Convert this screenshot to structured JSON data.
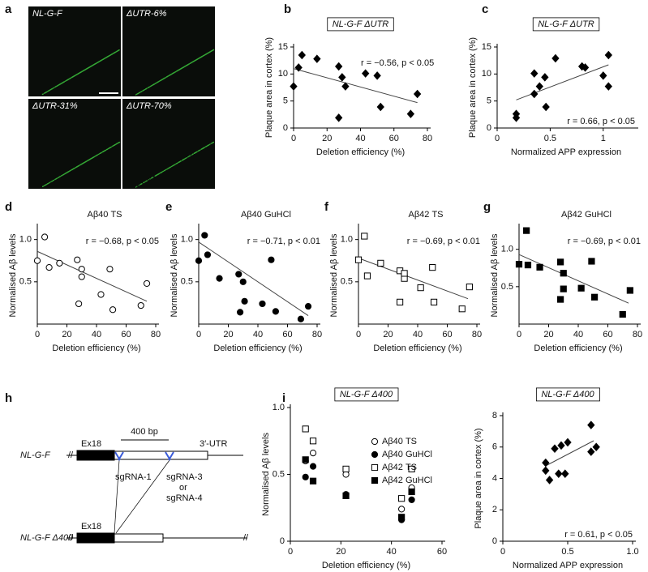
{
  "panel_labels": [
    "a",
    "b",
    "c",
    "d",
    "e",
    "f",
    "g",
    "h",
    "i"
  ],
  "panel_a": {
    "images": [
      "NL-G-F",
      "ΔUTR-6%",
      "ΔUTR-31%",
      "ΔUTR-70%"
    ]
  },
  "panel_h": {
    "rows": [
      "NL-G-F",
      "NL-G-F Δ400"
    ],
    "exon": "Ex18",
    "span": "400 bp",
    "utr": "3′-UTR",
    "guides": [
      "sgRNA-1",
      "sgRNA-3",
      "or",
      "sgRNA-4"
    ]
  },
  "chart_data": [
    {
      "type": "scatter",
      "title": "NL-G-F ΔUTR",
      "title_boxed": true,
      "x_label": "Deletion efficiency (%)",
      "y_label": "Plaque area in cortex (%)",
      "annotation": "r = −0.56, p < 0.05",
      "marker": "diamond",
      "filled": true,
      "color": "#000000",
      "xlim": [
        0,
        80
      ],
      "xticks": [
        0,
        20,
        40,
        60,
        80
      ],
      "ylim": [
        0,
        15
      ],
      "yticks": [
        0,
        5,
        10,
        15
      ],
      "x": [
        0,
        3,
        5,
        14,
        27,
        27,
        29,
        31,
        43,
        50,
        52,
        70,
        74
      ],
      "values": [
        7.7,
        11.2,
        13.5,
        12.8,
        11.4,
        1.9,
        9.4,
        7.7,
        10.1,
        9.7,
        3.9,
        2.6,
        6.3
      ],
      "fit": {
        "x": [
          0,
          74
        ],
        "values": [
          11,
          4.7
        ]
      }
    },
    {
      "type": "scatter",
      "title": "NL-G-F ΔUTR",
      "title_boxed": true,
      "x_label": "Normalized APP expression",
      "y_label": "Plaque area in cortex (%)",
      "annotation": "r = 0.66, p < 0.05",
      "marker": "diamond",
      "filled": true,
      "color": "#000000",
      "xlim": [
        0,
        1.3
      ],
      "xticks": [
        0,
        0.5,
        1
      ],
      "ylim": [
        0,
        15
      ],
      "yticks": [
        0,
        5,
        10,
        15
      ],
      "x": [
        0.18,
        0.18,
        0.35,
        0.35,
        0.4,
        0.45,
        0.46,
        0.55,
        0.8,
        0.83,
        1.0,
        1.05,
        1.05
      ],
      "values": [
        2.6,
        1.9,
        10.1,
        6.3,
        7.7,
        9.4,
        3.9,
        12.9,
        11.4,
        11.2,
        9.7,
        13.5,
        7.7
      ],
      "fit": {
        "x": [
          0.18,
          1.05
        ],
        "values": [
          5.2,
          11.7
        ]
      }
    },
    {
      "type": "scatter",
      "title": "Aβ40 TS",
      "x_label": "Deletion efficiency (%)",
      "y_label": "Normalised Aβ levels",
      "annotation": "r = −0.68, p < 0.05",
      "marker": "circle",
      "filled": false,
      "color": "#000000",
      "xlim": [
        0,
        80
      ],
      "xticks": [
        0,
        20,
        40,
        60,
        80
      ],
      "ylim": [
        0,
        1.15
      ],
      "yticks": [
        0.5,
        {
          "value": 1,
          "label": "1.0"
        }
      ],
      "x": [
        0,
        5,
        8,
        15,
        27,
        28,
        30,
        30,
        43,
        49,
        51,
        70,
        74
      ],
      "values": [
        0.75,
        1.03,
        0.67,
        0.72,
        0.76,
        0.24,
        0.65,
        0.56,
        0.35,
        0.65,
        0.17,
        0.22,
        0.48
      ],
      "fit": {
        "x": [
          0,
          74
        ],
        "values": [
          0.86,
          0.27
        ]
      }
    },
    {
      "type": "scatter",
      "title": "Aβ40 GuHCl",
      "x_label": "Deletion efficiency (%)",
      "y_label": "Normalised Aβ levels",
      "annotation": "r = −0.71, p < 0.01",
      "marker": "circle",
      "filled": true,
      "color": "#000000",
      "xlim": [
        0,
        80
      ],
      "xticks": [
        0,
        20,
        40,
        60,
        80
      ],
      "ylim": [
        0,
        1.15
      ],
      "yticks": [
        0.5,
        {
          "value": 1,
          "label": "1.0"
        }
      ],
      "x": [
        0,
        4,
        6,
        14,
        27,
        28,
        30,
        31,
        43,
        49,
        52,
        69,
        74
      ],
      "values": [
        0.75,
        1.05,
        0.82,
        0.54,
        0.59,
        0.14,
        0.5,
        0.27,
        0.24,
        0.76,
        0.15,
        0.06,
        0.21
      ],
      "fit": {
        "x": [
          0,
          74
        ],
        "values": [
          0.97,
          0.1
        ]
      }
    },
    {
      "type": "scatter",
      "title": "Aβ42 TS",
      "x_label": "Deletion efficiency (%)",
      "y_label": "Normalised Aβ levels",
      "annotation": "r = −0.69, p < 0.01",
      "marker": "square",
      "filled": false,
      "color": "#000000",
      "xlim": [
        0,
        80
      ],
      "xticks": [
        0,
        20,
        40,
        60,
        80
      ],
      "ylim": [
        0,
        1.15
      ],
      "yticks": [
        0.5,
        {
          "value": 1,
          "label": "1.0"
        }
      ],
      "x": [
        0,
        4,
        6,
        15,
        28,
        28,
        31,
        31,
        42,
        50,
        51,
        70,
        75
      ],
      "values": [
        0.76,
        1.04,
        0.57,
        0.72,
        0.63,
        0.26,
        0.54,
        0.6,
        0.43,
        0.67,
        0.26,
        0.18,
        0.44
      ],
      "fit": {
        "x": [
          0,
          74
        ],
        "values": [
          0.78,
          0.3
        ]
      }
    },
    {
      "type": "scatter",
      "title": "Aβ42 GuHCl",
      "x_label": "Deletion efficiency (%)",
      "y_label": "Normalised Aβ levels",
      "annotation": "r = −0.69, p < 0.01",
      "marker": "square",
      "filled": true,
      "color": "#000000",
      "xlim": [
        0,
        80
      ],
      "xticks": [
        0,
        20,
        40,
        60,
        80
      ],
      "ylim": [
        0,
        1.3
      ],
      "yticks": [
        0.5,
        {
          "value": 1,
          "label": "1.0"
        }
      ],
      "x": [
        0,
        5,
        6,
        14,
        28,
        28,
        30,
        30,
        42,
        49,
        51,
        70,
        75
      ],
      "values": [
        0.8,
        1.25,
        0.79,
        0.76,
        0.83,
        0.33,
        0.47,
        0.68,
        0.48,
        0.84,
        0.36,
        0.13,
        0.45
      ],
      "fit": {
        "x": [
          0,
          74
        ],
        "values": [
          0.93,
          0.28
        ]
      }
    },
    {
      "type": "scatter",
      "title": "NL-G-F Δ400",
      "title_boxed": true,
      "x_label": "Deletion efficiency (%)",
      "y_label": "Normalised Aβ levels",
      "color": "#000000",
      "xlim": [
        0,
        60
      ],
      "xticks": [
        0,
        20,
        40,
        60
      ],
      "ylim": [
        0,
        1
      ],
      "yticks": [
        0,
        0.5,
        {
          "value": 1,
          "label": "1.0"
        }
      ],
      "series": [
        {
          "name": "Aβ40 TS",
          "marker": "circle",
          "filled": false,
          "x": [
            6,
            9,
            22,
            44,
            48
          ],
          "values": [
            0.6,
            0.66,
            0.5,
            0.24,
            0.4
          ]
        },
        {
          "name": "Aβ40 GuHCl",
          "marker": "circle",
          "filled": true,
          "x": [
            6,
            9,
            22,
            44,
            48
          ],
          "values": [
            0.48,
            0.56,
            0.35,
            0.16,
            0.31
          ]
        },
        {
          "name": "Aβ42 TS",
          "marker": "square",
          "filled": false,
          "x": [
            6,
            9,
            22,
            44,
            48
          ],
          "values": [
            0.84,
            0.75,
            0.54,
            0.32,
            0.54
          ]
        },
        {
          "name": "Aβ42 GuHCl",
          "marker": "square",
          "filled": true,
          "x": [
            6,
            9,
            22,
            44,
            48
          ],
          "values": [
            0.61,
            0.45,
            0.34,
            0.18,
            0.37
          ]
        }
      ]
    },
    {
      "type": "scatter",
      "title": "NL-G-F Δ400",
      "title_boxed": true,
      "x_label": "Normalized APP expression",
      "y_label": "Plaque area in cortex (%)",
      "annotation": "r = 0.61, p < 0.05",
      "marker": "diamond",
      "filled": true,
      "color": "#000000",
      "xlim": [
        0,
        1
      ],
      "xticks": [
        0,
        0.5,
        {
          "value": 1,
          "label": "1.0"
        }
      ],
      "ylim": [
        0,
        8
      ],
      "yticks": [
        0,
        2,
        4,
        6,
        8
      ],
      "x": [
        0.33,
        0.33,
        0.36,
        0.4,
        0.43,
        0.45,
        0.48,
        0.5,
        0.68,
        0.68,
        0.72
      ],
      "values": [
        5.0,
        4.5,
        3.9,
        5.9,
        4.3,
        6.1,
        4.3,
        6.3,
        7.4,
        5.7,
        6.0
      ],
      "fit": {
        "x": [
          0.33,
          0.7
        ],
        "values": [
          4.8,
          6.4
        ]
      }
    }
  ]
}
